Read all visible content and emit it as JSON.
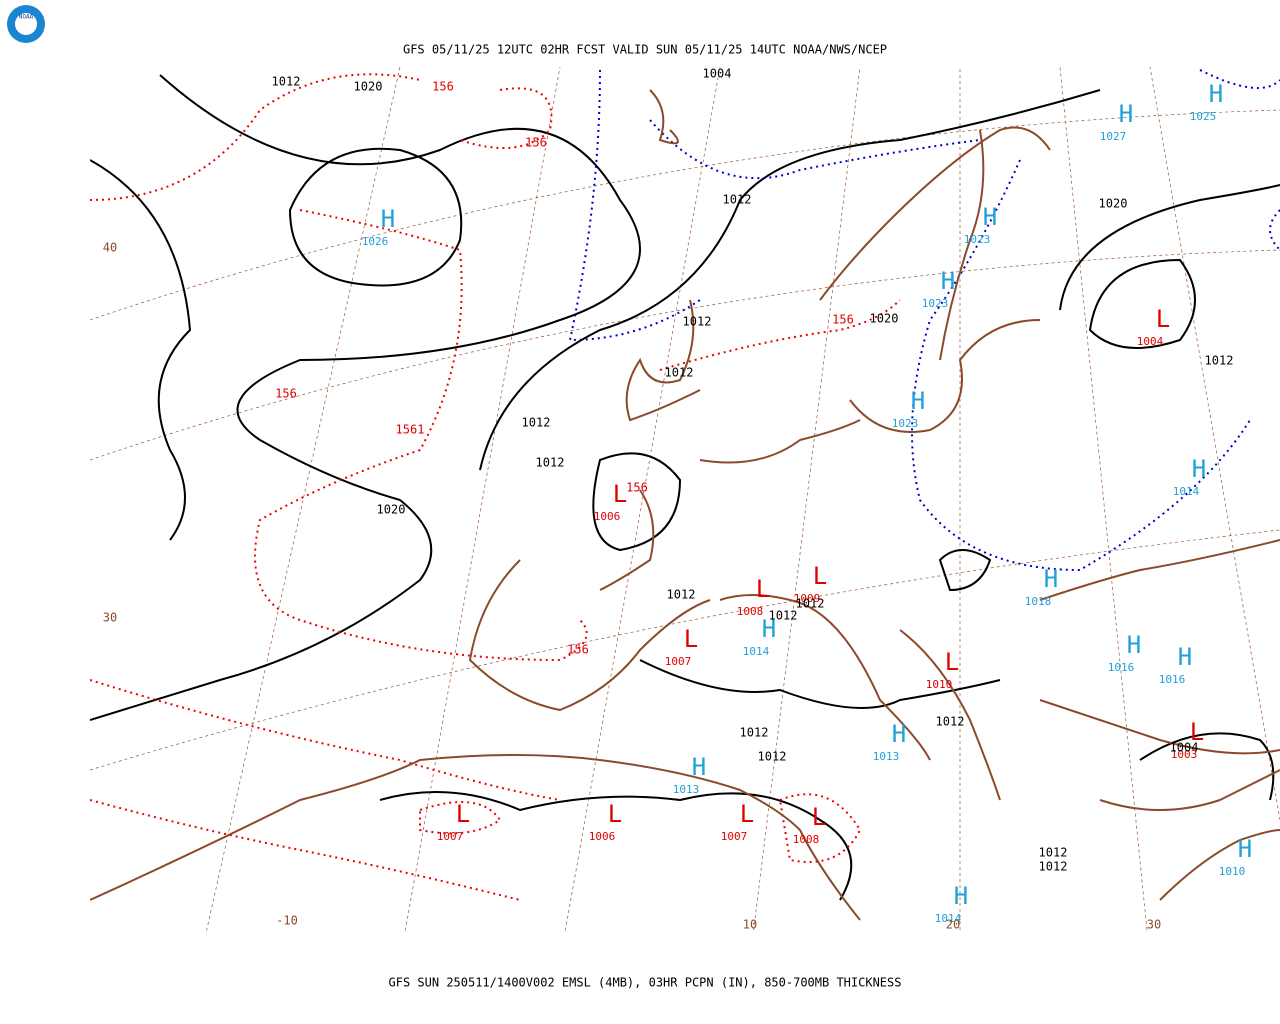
{
  "header": {
    "logo": "NOAA",
    "title": "GFS 05/11/25 12UTC 02HR FCST VALID SUN 05/11/25 14UTC NOAA/NWS/NCEP"
  },
  "footer": {
    "title": "GFS SUN 250511/1400V002 EMSL (4MB), 03HR PCPN (IN), 850-700MB THICKNESS"
  },
  "map": {
    "highs": [
      {
        "symbol": "H",
        "label": "1026"
      },
      {
        "symbol": "H",
        "label": "1027"
      },
      {
        "symbol": "H",
        "label": "1025"
      },
      {
        "symbol": "H",
        "label": "1023"
      },
      {
        "symbol": "H",
        "label": "1023"
      },
      {
        "symbol": "H",
        "label": "1023"
      },
      {
        "symbol": "H",
        "label": "1014"
      },
      {
        "symbol": "H",
        "label": "1018"
      },
      {
        "symbol": "H",
        "label": "1014"
      },
      {
        "symbol": "H",
        "label": "1016"
      },
      {
        "symbol": "H",
        "label": "1016"
      },
      {
        "symbol": "H",
        "label": "1013"
      },
      {
        "symbol": "H",
        "label": "1013"
      },
      {
        "symbol": "H",
        "label": "1010"
      },
      {
        "symbol": "H",
        "label": "1014"
      }
    ],
    "lows": [
      {
        "symbol": "L",
        "label": "1004"
      },
      {
        "symbol": "L",
        "label": "1006"
      },
      {
        "symbol": "L",
        "label": "1008"
      },
      {
        "symbol": "L",
        "label": "1009"
      },
      {
        "symbol": "L",
        "label": "1007"
      },
      {
        "symbol": "L",
        "label": "1010"
      },
      {
        "symbol": "L",
        "label": "1003"
      },
      {
        "symbol": "L",
        "label": "1007"
      },
      {
        "symbol": "L",
        "label": "1006"
      },
      {
        "symbol": "L",
        "label": "1007"
      },
      {
        "symbol": "L",
        "label": "1008"
      }
    ],
    "isobar_labels": [
      "1012",
      "1020",
      "1004",
      "1012",
      "1020",
      "1012",
      "1020",
      "1012",
      "1012",
      "1012",
      "1012",
      "1020",
      "1012",
      "1012",
      "1012",
      "1012",
      "1012",
      "1012",
      "1004",
      "1012",
      "1012"
    ],
    "thickness_labels": [
      "156",
      "156",
      "156",
      "156",
      "1561",
      "156",
      "156"
    ],
    "grid_labels": [
      "40",
      "30",
      "-10",
      "10",
      "20",
      "30"
    ]
  }
}
